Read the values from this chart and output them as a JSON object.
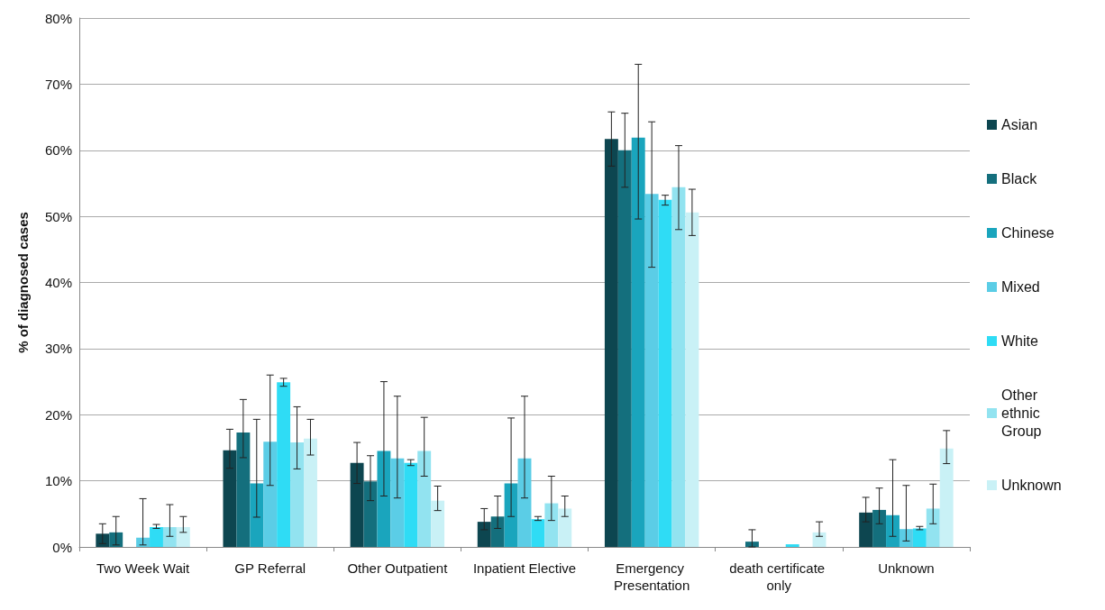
{
  "chart_data": {
    "type": "bar",
    "ylabel": "% of diagnosed cases",
    "categories": [
      "Two Week Wait",
      "GP Referral",
      "Other Outpatient",
      "Inpatient Elective",
      "Emergency Presentation",
      "death certificate only",
      "Unknown"
    ],
    "ylim": [
      0,
      80
    ],
    "yticks": [
      {
        "value": 0,
        "label": "0%"
      },
      {
        "value": 10,
        "label": "10%"
      },
      {
        "value": 20,
        "label": "20%"
      },
      {
        "value": 30,
        "label": "30%"
      },
      {
        "value": 40,
        "label": "40%"
      },
      {
        "value": 50,
        "label": "50%"
      },
      {
        "value": 60,
        "label": "60%"
      },
      {
        "value": 70,
        "label": "70%"
      },
      {
        "value": 80,
        "label": "80%"
      }
    ],
    "grid": "y",
    "legend": "right",
    "series": [
      {
        "name": "Asian",
        "color": "#0d4650",
        "values": [
          2.0,
          14.6,
          12.7,
          3.8,
          61.7,
          0,
          5.2
        ],
        "errors": [
          [
            0.5,
            3.5
          ],
          [
            11.9,
            17.8
          ],
          [
            9.6,
            15.8
          ],
          [
            2.6,
            5.8
          ],
          [
            57.6,
            65.8
          ],
          null,
          [
            3.8,
            7.5
          ]
        ]
      },
      {
        "name": "Black",
        "color": "#146f7d",
        "values": [
          2.2,
          17.3,
          9.9,
          4.6,
          60.0,
          0.8,
          5.6
        ],
        "errors": [
          [
            0.3,
            4.6
          ],
          [
            13.5,
            22.3
          ],
          [
            7.0,
            13.8
          ],
          [
            2.8,
            7.7
          ],
          [
            54.4,
            65.6
          ],
          [
            0,
            2.6
          ],
          [
            3.5,
            8.9
          ]
        ]
      },
      {
        "name": "Chinese",
        "color": "#1aa5bd",
        "values": [
          0,
          9.6,
          14.5,
          9.6,
          61.9,
          0,
          4.8
        ],
        "errors": [
          null,
          [
            4.5,
            19.3
          ],
          [
            7.7,
            25.0
          ],
          [
            4.6,
            19.5
          ],
          [
            49.6,
            73.0
          ],
          null,
          [
            1.6,
            13.2
          ]
        ]
      },
      {
        "name": "Mixed",
        "color": "#5bcde6",
        "values": [
          1.4,
          15.9,
          13.4,
          13.4,
          53.4,
          0,
          2.7
        ],
        "errors": [
          [
            0.3,
            7.3
          ],
          [
            9.3,
            26.0
          ],
          [
            7.4,
            22.8
          ],
          [
            7.4,
            22.8
          ],
          [
            42.3,
            64.3
          ],
          null,
          [
            0.9,
            9.3
          ]
        ]
      },
      {
        "name": "White",
        "color": "#2fdcf5",
        "values": [
          3.0,
          24.9,
          12.7,
          4.2,
          52.5,
          0.4,
          2.8
        ],
        "errors": [
          [
            2.8,
            3.4
          ],
          [
            24.3,
            25.5
          ],
          [
            12.3,
            13.2
          ],
          [
            4.0,
            4.6
          ],
          [
            51.7,
            53.2
          ],
          null,
          [
            2.6,
            3.1
          ]
        ]
      },
      {
        "name": "Other ethnic Group",
        "color": "#92e3f0",
        "values": [
          3.0,
          15.8,
          14.5,
          6.6,
          54.4,
          0,
          5.8
        ],
        "errors": [
          [
            1.6,
            6.4
          ],
          [
            11.8,
            21.2
          ],
          [
            10.7,
            19.6
          ],
          [
            4.0,
            10.7
          ],
          [
            48.0,
            60.7
          ],
          null,
          [
            3.5,
            9.5
          ]
        ]
      },
      {
        "name": "Unknown",
        "color": "#c9f1f6",
        "values": [
          3.0,
          16.4,
          7.0,
          5.8,
          50.6,
          2.2,
          14.9
        ],
        "errors": [
          [
            2.2,
            4.6
          ],
          [
            13.9,
            19.3
          ],
          [
            5.5,
            9.2
          ],
          [
            4.6,
            7.7
          ],
          [
            47.1,
            54.1
          ],
          [
            1.6,
            3.8
          ],
          [
            12.6,
            17.6
          ]
        ]
      }
    ]
  }
}
